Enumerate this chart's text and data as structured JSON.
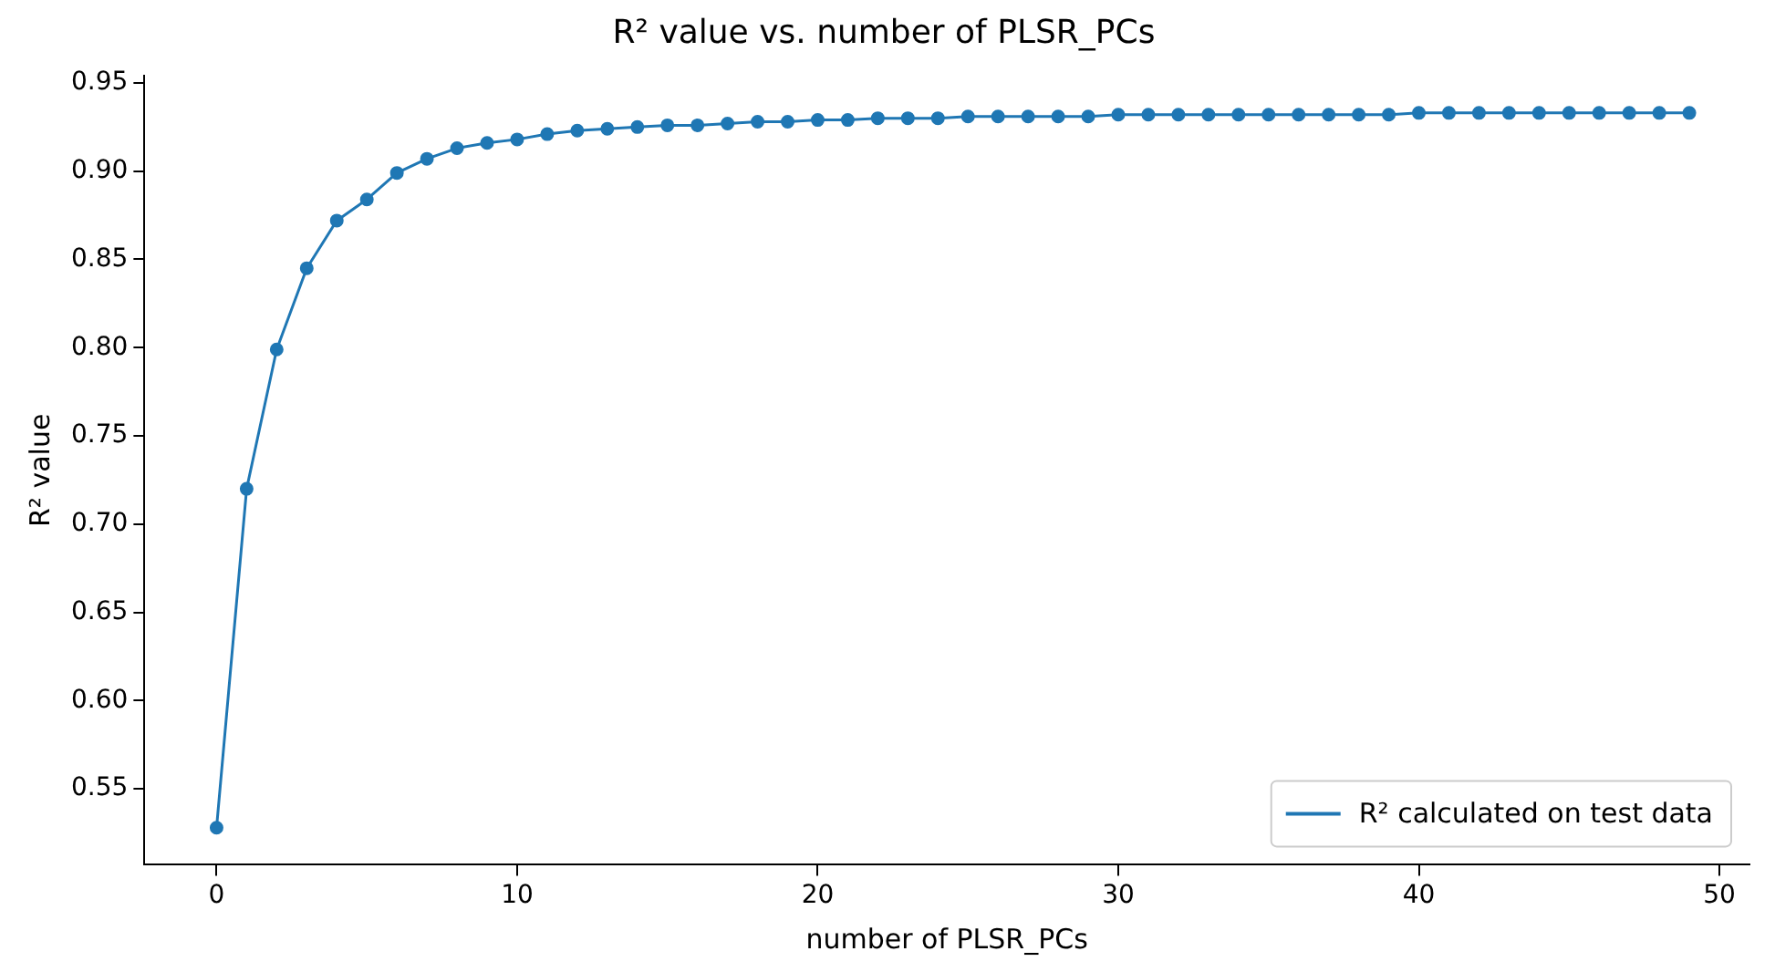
{
  "chart_data": {
    "type": "line",
    "title": "R² value vs. number of PLSR_PCs",
    "xlabel": "number of PLSR_PCs",
    "ylabel": "R² value",
    "x": [
      0,
      1,
      2,
      3,
      4,
      5,
      6,
      7,
      8,
      9,
      10,
      11,
      12,
      13,
      14,
      15,
      16,
      17,
      18,
      19,
      20,
      21,
      22,
      23,
      24,
      25,
      26,
      27,
      28,
      29,
      30,
      31,
      32,
      33,
      34,
      35,
      36,
      37,
      38,
      39,
      40,
      41,
      42,
      43,
      44,
      45,
      46,
      47,
      48,
      49
    ],
    "series": [
      {
        "name": "R² calculated on test data",
        "color": "#1f77b4",
        "values": [
          0.528,
          0.72,
          0.799,
          0.845,
          0.872,
          0.884,
          0.899,
          0.907,
          0.913,
          0.916,
          0.918,
          0.921,
          0.923,
          0.924,
          0.925,
          0.926,
          0.926,
          0.927,
          0.928,
          0.928,
          0.929,
          0.929,
          0.93,
          0.93,
          0.93,
          0.931,
          0.931,
          0.931,
          0.931,
          0.931,
          0.932,
          0.932,
          0.932,
          0.932,
          0.932,
          0.932,
          0.932,
          0.932,
          0.932,
          0.932,
          0.933,
          0.933,
          0.933,
          0.933,
          0.933,
          0.933,
          0.933,
          0.933,
          0.933,
          0.933
        ]
      }
    ],
    "xlim": [
      -2.4,
      51
    ],
    "xticks": [
      0,
      10,
      20,
      30,
      40,
      50
    ],
    "ylim": [
      0.507,
      0.954
    ],
    "yticks": [
      0.55,
      {
        "value": 0.6,
        "label": "0.60"
      },
      0.65,
      {
        "value": 0.7,
        "label": "0.70"
      },
      0.75,
      {
        "value": 0.8,
        "label": "0.80"
      },
      0.85,
      {
        "value": 0.9,
        "label": "0.90"
      },
      0.95
    ],
    "grid": false,
    "legend": "bottom right",
    "marker": "circle",
    "line_style": "solid"
  }
}
